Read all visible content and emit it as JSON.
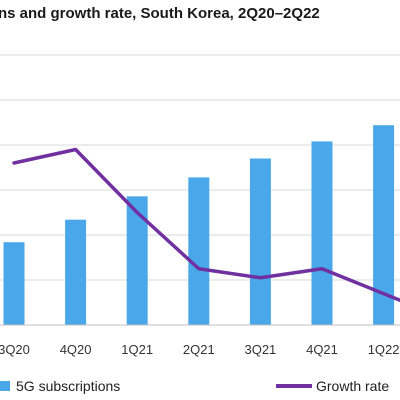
{
  "chart_data": {
    "type": "bar",
    "title": "ns and growth rate, South Korea, 2Q20–2Q22",
    "categories": [
      "3Q20",
      "4Q20",
      "1Q21",
      "2Q21",
      "3Q21",
      "4Q21",
      "1Q22"
    ],
    "series": [
      {
        "name": "5G subscriptions",
        "type": "bar",
        "color": "#4aa8ea",
        "values": [
          9.2,
          11.7,
          14.3,
          16.4,
          18.5,
          20.4,
          22.2
        ]
      },
      {
        "name": "Growth rate",
        "type": "line",
        "color": "#7030a0",
        "values": [
          36,
          39,
          25,
          12.5,
          10.5,
          12.5,
          5.5
        ]
      }
    ],
    "ylim_bar": [
      0,
      30
    ],
    "ylim_line": [
      0,
      60
    ],
    "grid": true,
    "legend_position": "bottom"
  }
}
